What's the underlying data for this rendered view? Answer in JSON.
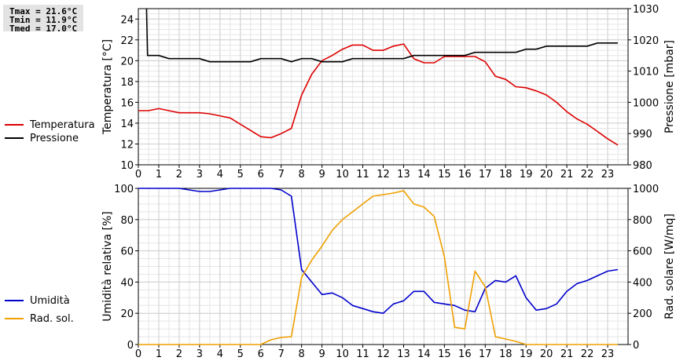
{
  "stats": {
    "tmax": "Tmax = 21.6°C",
    "tmin": "Tmin = 11.9°C",
    "tmed": "Tmed = 17.0°C"
  },
  "chart_data": [
    {
      "type": "line",
      "x_ticks": [
        0,
        1,
        2,
        3,
        4,
        5,
        6,
        7,
        8,
        9,
        10,
        11,
        12,
        13,
        14,
        15,
        16,
        17,
        18,
        19,
        20,
        21,
        22,
        23
      ],
      "xlim": [
        0,
        24
      ],
      "ylabel": "Temperatura [°C]",
      "ylim": [
        10,
        25
      ],
      "y_ticks": [
        10,
        12,
        14,
        16,
        18,
        20,
        22,
        24
      ],
      "ylabel_right": "Pressione [mbar]",
      "ylim_right": [
        980,
        1030
      ],
      "y_ticks_right": [
        980,
        990,
        1000,
        1010,
        1020,
        1030
      ],
      "legend": "left",
      "grid": true,
      "series": [
        {
          "name": "Temperatura",
          "color": "#dd0000",
          "axis": "left",
          "x": [
            0,
            0.5,
            1,
            1.5,
            2,
            2.5,
            3,
            3.5,
            4,
            4.5,
            5,
            5.5,
            6,
            6.5,
            7,
            7.5,
            8,
            8.5,
            9,
            9.5,
            10,
            10.5,
            11,
            11.5,
            12,
            12.5,
            13,
            13.5,
            14,
            14.5,
            15,
            15.5,
            16,
            16.5,
            17,
            17.5,
            18,
            18.5,
            19,
            19.5,
            20,
            20.5,
            21,
            21.5,
            22,
            22.5,
            23,
            23.5
          ],
          "y": [
            15.2,
            15.2,
            15.4,
            15.2,
            15.0,
            15.0,
            15.0,
            14.9,
            14.7,
            14.5,
            13.9,
            13.3,
            12.7,
            12.6,
            13.0,
            13.5,
            16.7,
            18.7,
            20.0,
            20.5,
            21.1,
            21.5,
            21.5,
            21.0,
            21.0,
            21.4,
            21.6,
            20.2,
            19.8,
            19.8,
            20.4,
            20.4,
            20.4,
            20.4,
            19.9,
            18.5,
            18.2,
            17.5,
            17.4,
            17.1,
            16.7,
            16.0,
            15.1,
            14.4,
            13.9,
            13.2,
            12.5,
            11.9
          ]
        },
        {
          "name": "Pressione",
          "color": "#000000",
          "axis": "right",
          "x": [
            0.4,
            0.45,
            1,
            1.5,
            2,
            2.5,
            3,
            3.5,
            4,
            4.5,
            5,
            5.5,
            6,
            6.5,
            7,
            7.5,
            8,
            8.5,
            9,
            9.5,
            10,
            10.5,
            11,
            11.5,
            12,
            12.5,
            13,
            13.5,
            14,
            14.5,
            15,
            15.5,
            16,
            16.5,
            17,
            17.5,
            18,
            18.5,
            19,
            19.5,
            20,
            20.5,
            21,
            21.5,
            22,
            22.5,
            23,
            23.5
          ],
          "y": [
            1030,
            1015,
            1015,
            1014,
            1014,
            1014,
            1014,
            1013,
            1013,
            1013,
            1013,
            1013,
            1014,
            1014,
            1014,
            1013,
            1014,
            1014,
            1013,
            1013,
            1013,
            1014,
            1014,
            1014,
            1014,
            1014,
            1014,
            1015,
            1015,
            1015,
            1015,
            1015,
            1015,
            1016,
            1016,
            1016,
            1016,
            1016,
            1017,
            1017,
            1018,
            1018,
            1018,
            1018,
            1018,
            1019,
            1019,
            1019
          ]
        }
      ]
    },
    {
      "type": "line",
      "x_ticks": [
        0,
        1,
        2,
        3,
        4,
        5,
        6,
        7,
        8,
        9,
        10,
        11,
        12,
        13,
        14,
        15,
        16,
        17,
        18,
        19,
        20,
        21,
        22,
        23
      ],
      "xlim": [
        0,
        24
      ],
      "ylabel": "Umidità relativa [%]",
      "ylim": [
        0,
        100
      ],
      "y_ticks": [
        0,
        20,
        40,
        60,
        80,
        100
      ],
      "ylabel_right": "Rad. solare [W/mq]",
      "ylim_right": [
        0,
        1000
      ],
      "y_ticks_right": [
        0,
        200,
        400,
        600,
        800,
        1000
      ],
      "legend": "left",
      "grid": true,
      "series": [
        {
          "name": "Umidità",
          "color": "#0000cc",
          "axis": "left",
          "x": [
            0,
            0.5,
            1,
            1.5,
            2,
            2.5,
            3,
            3.5,
            4,
            4.5,
            5,
            5.5,
            6,
            6.5,
            7,
            7.5,
            8,
            8.5,
            9,
            9.5,
            10,
            10.5,
            11,
            11.5,
            12,
            12.5,
            13,
            13.5,
            14,
            14.5,
            15,
            15.5,
            16,
            16.5,
            17,
            17.5,
            18,
            18.5,
            19,
            19.5,
            20,
            20.5,
            21,
            21.5,
            22,
            22.5,
            23,
            23.5
          ],
          "y": [
            100,
            100,
            100,
            100,
            100,
            99,
            98,
            98,
            99,
            100,
            100,
            100,
            100,
            100,
            99,
            95,
            48,
            40,
            32,
            33,
            30,
            25,
            23,
            21,
            20,
            26,
            28,
            34,
            34,
            27,
            26,
            25,
            22,
            21,
            36,
            41,
            40,
            44,
            30,
            22,
            23,
            26,
            34,
            39,
            41,
            44,
            47,
            48
          ]
        },
        {
          "name": "Rad. sol.",
          "color": "#f0a000",
          "axis": "right",
          "x": [
            0,
            0.5,
            1,
            1.5,
            2,
            2.5,
            3,
            3.5,
            4,
            4.5,
            5,
            5.5,
            6,
            6.5,
            7,
            7.5,
            8,
            8.5,
            9,
            9.5,
            10,
            10.5,
            11,
            11.5,
            12,
            12.5,
            13,
            13.5,
            14,
            14.5,
            15,
            15.5,
            16,
            16.5,
            17,
            17.5,
            18,
            18.5,
            19,
            19.5,
            20,
            20.5,
            21,
            21.5,
            22,
            22.5,
            23,
            23.5
          ],
          "y": [
            0,
            0,
            0,
            0,
            0,
            0,
            0,
            0,
            0,
            0,
            0,
            0,
            0,
            30,
            45,
            50,
            430,
            540,
            630,
            730,
            800,
            850,
            900,
            950,
            960,
            970,
            985,
            900,
            880,
            820,
            560,
            110,
            100,
            470,
            370,
            50,
            35,
            20,
            0,
            0,
            0,
            0,
            0,
            0,
            0,
            0,
            0,
            0
          ]
        }
      ]
    }
  ]
}
